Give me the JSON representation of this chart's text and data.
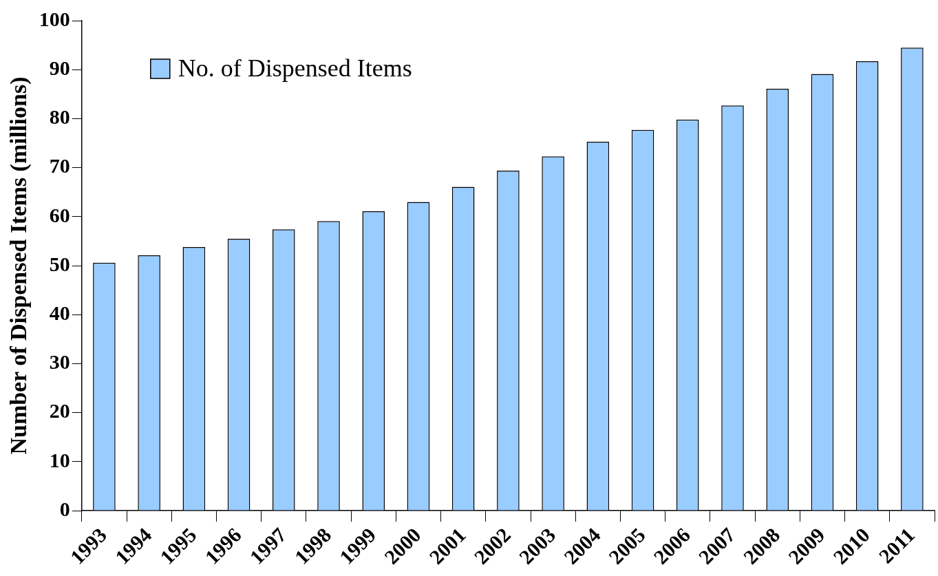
{
  "chart_data": {
    "type": "bar",
    "ylabel": "Number of Dispensed Items (millions)",
    "categories": [
      "1993",
      "1994",
      "1995",
      "1996",
      "1997",
      "1998",
      "1999",
      "2000",
      "2001",
      "2002",
      "2003",
      "2004",
      "2005",
      "2006",
      "2007",
      "2008",
      "2009",
      "2010",
      "2011"
    ],
    "series": [
      {
        "name": "No. of Dispensed Items",
        "color": "#99ccff",
        "values": [
          50.6,
          52.1,
          53.8,
          55.5,
          57.4,
          59.1,
          61.1,
          63.0,
          66.1,
          69.4,
          72.3,
          75.3,
          77.7,
          79.8,
          82.7,
          86.1,
          89.1,
          91.7,
          94.5
        ]
      }
    ],
    "ylim": [
      0,
      100
    ],
    "yticks": [
      0,
      10,
      20,
      30,
      40,
      50,
      60,
      70,
      80,
      90,
      100
    ],
    "grid": false,
    "legend": "top left"
  }
}
